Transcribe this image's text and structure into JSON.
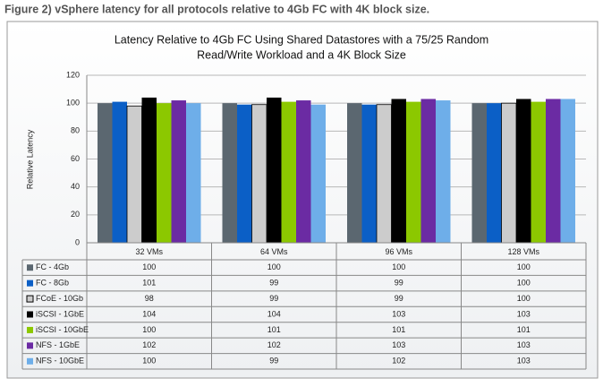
{
  "caption": "Figure 2) vSphere latency for all protocols relative to 4Gb FC with 4K block size.",
  "chart_data": {
    "type": "bar",
    "title": [
      "Latency Relative to 4Gb FC Using Shared Datastores with a 75/25 Random",
      "Read/Write Workload and a 4K Block Size"
    ],
    "ylabel": "Relative Latency",
    "categories": [
      "32 VMs",
      "64 VMs",
      "96 VMs",
      "128 VMs"
    ],
    "series": [
      {
        "name": "FC - 4Gb",
        "color": "#5b6770",
        "values": [
          100,
          100,
          100,
          100
        ]
      },
      {
        "name": "FC - 8Gb",
        "color": "#0b5fc6",
        "values": [
          101,
          99,
          99,
          100
        ]
      },
      {
        "name": "FCoE - 10Gb",
        "color": "#cccccc",
        "values": [
          98,
          99,
          99,
          100
        ]
      },
      {
        "name": "iSCSI - 1GbE",
        "color": "#000000",
        "values": [
          104,
          104,
          103,
          103
        ]
      },
      {
        "name": "iSCSI - 10GbE",
        "color": "#8cc800",
        "values": [
          100,
          101,
          101,
          101
        ]
      },
      {
        "name": "NFS - 1GbE",
        "color": "#6b2ba3",
        "values": [
          102,
          102,
          103,
          103
        ]
      },
      {
        "name": "NFS - 10GbE",
        "color": "#6eaee9",
        "values": [
          100,
          99,
          102,
          103
        ]
      }
    ],
    "ylim": [
      0,
      120
    ],
    "yticks": [
      0,
      20,
      40,
      60,
      80,
      100,
      120
    ],
    "grid": true
  }
}
